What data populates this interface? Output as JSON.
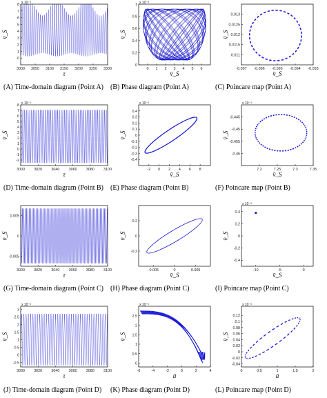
{
  "figure": {
    "panels": [
      {
        "id": "A",
        "type": "time",
        "caption": "(A) Time-domain diagram (Point A)",
        "xlabel": "τ",
        "ylabel": "v̄_S",
        "exponent": "x 10⁻³",
        "xlim": [
          3000,
          3300
        ],
        "ylim": [
          -1,
          8
        ],
        "xticks": [
          3000,
          3050,
          3100,
          3150,
          3200,
          3250,
          3300
        ],
        "yticks": [
          0,
          1,
          2,
          3,
          4,
          5,
          6,
          7,
          8
        ],
        "wave": {
          "base": 4,
          "amp": 3.5,
          "period": 7,
          "modPeriod": 100,
          "modAmp": 1.2
        }
      },
      {
        "id": "B",
        "type": "torus",
        "caption": "(B) Phase diagram (Point A)",
        "xlabel": "v̄_S",
        "ylabel": "v̄_S",
        "exponent": "x 10⁻³",
        "xlim": [
          -1,
          7
        ],
        "ylim": [
          0,
          1
        ],
        "xticks": [
          0,
          1,
          2,
          3,
          4,
          5,
          6
        ],
        "yticks": [
          0,
          0.2,
          0.4,
          0.6,
          0.8,
          1
        ]
      },
      {
        "id": "C",
        "type": "ellipse",
        "caption": "(C) Poincare map (Point A)",
        "xlabel": "v̄_S",
        "ylabel": "v̄_S",
        "xlim": [
          -0.097,
          -0.093
        ],
        "ylim": [
          0.0105,
          0.0135
        ],
        "xticks": [
          -0.097,
          -0.096,
          -0.095,
          -0.094,
          -0.093
        ],
        "yticks": [
          0.011,
          0.0115,
          0.012,
          0.0125,
          0.013
        ],
        "ellipse": {
          "cx": -0.0951,
          "cy": 0.01195,
          "rx": 0.00145,
          "ry": 0.00125,
          "tilt": 0,
          "n": 40
        }
      },
      {
        "id": "D",
        "type": "time",
        "caption": "(D) Time-domain diagram (Point B)",
        "xlabel": "τ",
        "ylabel": "v̄_S",
        "exponent": "x 10⁻³",
        "xlim": [
          3000,
          3100
        ],
        "ylim": [
          -3,
          8
        ],
        "xticks": [
          3000,
          3020,
          3040,
          3060,
          3080,
          3100
        ],
        "yticks": [
          -2,
          -1,
          0,
          1,
          2,
          3,
          4,
          5,
          6,
          7,
          8
        ],
        "wave": {
          "base": 2.3,
          "amp": 4.8,
          "period": 2.0,
          "modPeriod": 0,
          "modAmp": 0
        }
      },
      {
        "id": "E",
        "type": "ellipse",
        "caption": "(E) Phase diagram (Point B)",
        "xlabel": "v̄_S",
        "ylabel": "v̄_S",
        "exponent": "x 10⁻³",
        "xlim": [
          -4,
          10
        ],
        "ylim": [
          -0.5,
          0.5
        ],
        "xticks": [
          -2,
          0,
          2,
          4,
          6,
          8
        ],
        "yticks": [
          -0.4,
          -0.3,
          -0.2,
          -0.1,
          0,
          0.1,
          0.2,
          0.3,
          0.4
        ],
        "ellipse": {
          "cx": 2.3,
          "cy": 0,
          "rx": 6.2,
          "ry": 0.045,
          "tilt": -34,
          "n": 0
        }
      },
      {
        "id": "F",
        "type": "ellipse",
        "caption": "(F) Poincare map (Point B)",
        "xlabel": "v̄_S",
        "ylabel": "v̄_S",
        "exponent": "x 10⁻³",
        "xlim": [
          7.15,
          7.35
        ],
        "ylim": [
          -0.465,
          -0.44
        ],
        "xticks": [
          7.2,
          7.25,
          7.3,
          7.35
        ],
        "yticks": [
          -0.445,
          -0.45,
          -0.455,
          -0.46
        ],
        "ellipse": {
          "cx": 7.26,
          "cy": -0.4515,
          "rx": 0.072,
          "ry": 0.0075,
          "tilt": 0,
          "n": 60
        }
      },
      {
        "id": "G",
        "type": "time",
        "caption": "(G) Time-domain diagram (Point C)",
        "xlabel": "τ",
        "ylabel": "v̄_S",
        "xlim": [
          3000,
          3100
        ],
        "ylim": [
          -0.0075,
          0.0075
        ],
        "xticks": [
          3000,
          3020,
          3040,
          3060,
          3080,
          3100
        ],
        "yticks": [
          -0.005,
          0,
          0.005
        ],
        "wave": {
          "base": 0,
          "amp": 0.0068,
          "period": 1.6,
          "modPeriod": 0,
          "modAmp": 0
        }
      },
      {
        "id": "H",
        "type": "ellipse",
        "caption": "(H) Phase diagram (Point C)",
        "xlabel": "v̄_S",
        "ylabel": "v̄_S",
        "xlim": [
          -0.0085,
          0.0085
        ],
        "ylim": [
          -0.4,
          0.4
        ],
        "xticks": [
          -0.005,
          0,
          0.005
        ],
        "yticks": [
          -0.2,
          0,
          0.2
        ],
        "ellipse": {
          "cx": 0,
          "cy": 0,
          "rx": 0.0078,
          "ry": 0.035,
          "tilt": -31,
          "n": 0
        }
      },
      {
        "id": "I",
        "type": "point",
        "caption": "(I) Poincare map (Point C)",
        "xlabel": "v̄_S",
        "ylabel": "v̄_S",
        "exponent": "x 10⁻³",
        "xlim": [
          -13,
          2
        ],
        "ylim": [
          -0.5,
          0.5
        ],
        "xticks": [
          -10,
          -5,
          0
        ],
        "yticks": [
          -0.4,
          -0.2,
          0,
          0.2,
          0.4
        ],
        "point": {
          "x": -10,
          "y": 0.38
        }
      },
      {
        "id": "J",
        "type": "time",
        "caption": "(J) Time-domain diagram (Point D)",
        "xlabel": "τ",
        "ylabel": "v̄_S",
        "exponent": "x 10⁻³",
        "xlim": [
          3000,
          3100
        ],
        "ylim": [
          -0.8,
          3.2
        ],
        "xticks": [
          3000,
          3020,
          3040,
          3060,
          3080,
          3100
        ],
        "yticks": [
          -0.5,
          0,
          0.5,
          1,
          1.5,
          2,
          2.5,
          3
        ],
        "wave": {
          "base": 1.0,
          "amp": 1.7,
          "period": 2.6,
          "modPeriod": 0,
          "modAmp": 0
        }
      },
      {
        "id": "K",
        "type": "flow",
        "caption": "(K) Phase diagram (Point D)",
        "xlabel": "ū",
        "ylabel": "v̄_S",
        "exponent": "x 10⁻³",
        "xlim": [
          -6,
          4
        ],
        "ylim": [
          -0.2,
          3
        ],
        "xticks": [
          -6,
          -4,
          -2,
          0,
          2,
          4
        ],
        "yticks": [
          0,
          0.5,
          1,
          1.5,
          2,
          2.5
        ]
      },
      {
        "id": "L",
        "type": "ellipse",
        "caption": "(L) Poincare map (Point D)",
        "xlabel": "ū",
        "ylabel": "v̄_S",
        "exponent": "x 10⁻³",
        "xlim": [
          0,
          2
        ],
        "ylim": [
          -0.05,
          0.15
        ],
        "xticks": [
          0,
          0.5,
          1,
          1.5,
          2
        ],
        "yticks": [
          -0.04,
          -0.02,
          0,
          0.02,
          0.04,
          0.06,
          0.08,
          0.1,
          0.12
        ],
        "ellipse": {
          "cx": 0.87,
          "cy": 0.045,
          "rx": 0.92,
          "ry": 0.008,
          "tilt": -38,
          "n": 40
        }
      }
    ]
  },
  "colors": {
    "curve": "#1a1ad6",
    "dense": "#1616c8",
    "frame": "#000000"
  }
}
